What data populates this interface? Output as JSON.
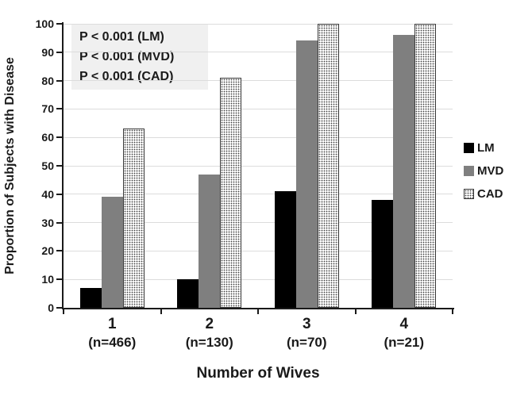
{
  "chart_data": {
    "type": "bar",
    "title": "",
    "xlabel": "Number of Wives",
    "ylabel": "Proportion of Subjects with Disease",
    "ylim": [
      0,
      100
    ],
    "yticks": [
      0,
      10,
      20,
      30,
      40,
      50,
      60,
      70,
      80,
      90,
      100
    ],
    "grid": "horizontal",
    "legend_position": "right",
    "categories": [
      {
        "label": "1",
        "n": "(n=466)"
      },
      {
        "label": "2",
        "n": "(n=130)"
      },
      {
        "label": "3",
        "n": "(n=70)"
      },
      {
        "label": "4",
        "n": "(n=21)"
      }
    ],
    "series": [
      {
        "name": "LM",
        "fill": "solid",
        "color": "#000000",
        "values": [
          7,
          10,
          41,
          38
        ]
      },
      {
        "name": "MVD",
        "fill": "solid",
        "color": "#7f7f7f",
        "values": [
          39,
          47,
          94,
          96
        ]
      },
      {
        "name": "CAD",
        "fill": "dots",
        "color": "#ffffff",
        "values": [
          63,
          81,
          100,
          100
        ]
      }
    ],
    "annotations": [
      "P < 0.001 (LM)",
      "P < 0.001 (MVD)",
      "P < 0.001 (CAD)"
    ]
  },
  "colors": {
    "axis": "#1a1a1a",
    "gridline": "#dcdcdc",
    "text": "#1a1a1a",
    "annotation_bg": "#f0f0f0",
    "cad_dot": "#3f3f3f",
    "cad_border": "#3a3a3a"
  }
}
